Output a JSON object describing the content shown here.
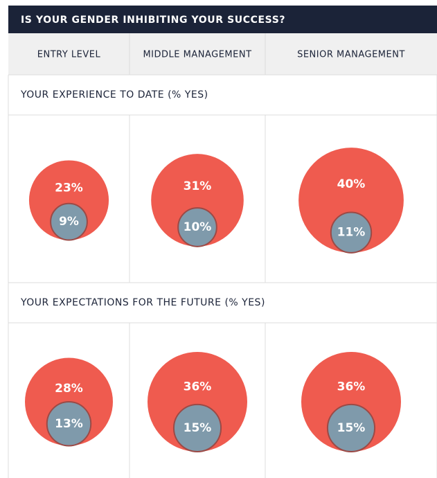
{
  "chart_data": {
    "type": "bubble",
    "title": "IS YOUR GENDER INHIBITING YOUR SUCCESS?",
    "categories": [
      "ENTRY LEVEL",
      "MIDDLE MANAGEMENT",
      "SENIOR MANAGEMENT"
    ],
    "panels": [
      {
        "title": "YOUR EXPERIENCE TO DATE (% YES)",
        "series": [
          {
            "color": "#ef5b4f",
            "values": [
              23,
              31,
              40
            ],
            "value_labels": [
              "23%",
              "31%",
              "40%"
            ]
          },
          {
            "color": "#7f9aab",
            "values": [
              9,
              10,
              11
            ],
            "value_labels": [
              "9%",
              "10%",
              "11%"
            ]
          }
        ]
      },
      {
        "title": "YOUR EXPECTATIONS FOR THE FUTURE (% YES)",
        "series": [
          {
            "color": "#ef5b4f",
            "values": [
              28,
              36,
              36
            ],
            "value_labels": [
              "28%",
              "36%",
              "36%"
            ]
          },
          {
            "color": "#7f9aab",
            "values": [
              13,
              15,
              15
            ],
            "value_labels": [
              "13%",
              "15%",
              "15%"
            ]
          }
        ]
      }
    ]
  }
}
